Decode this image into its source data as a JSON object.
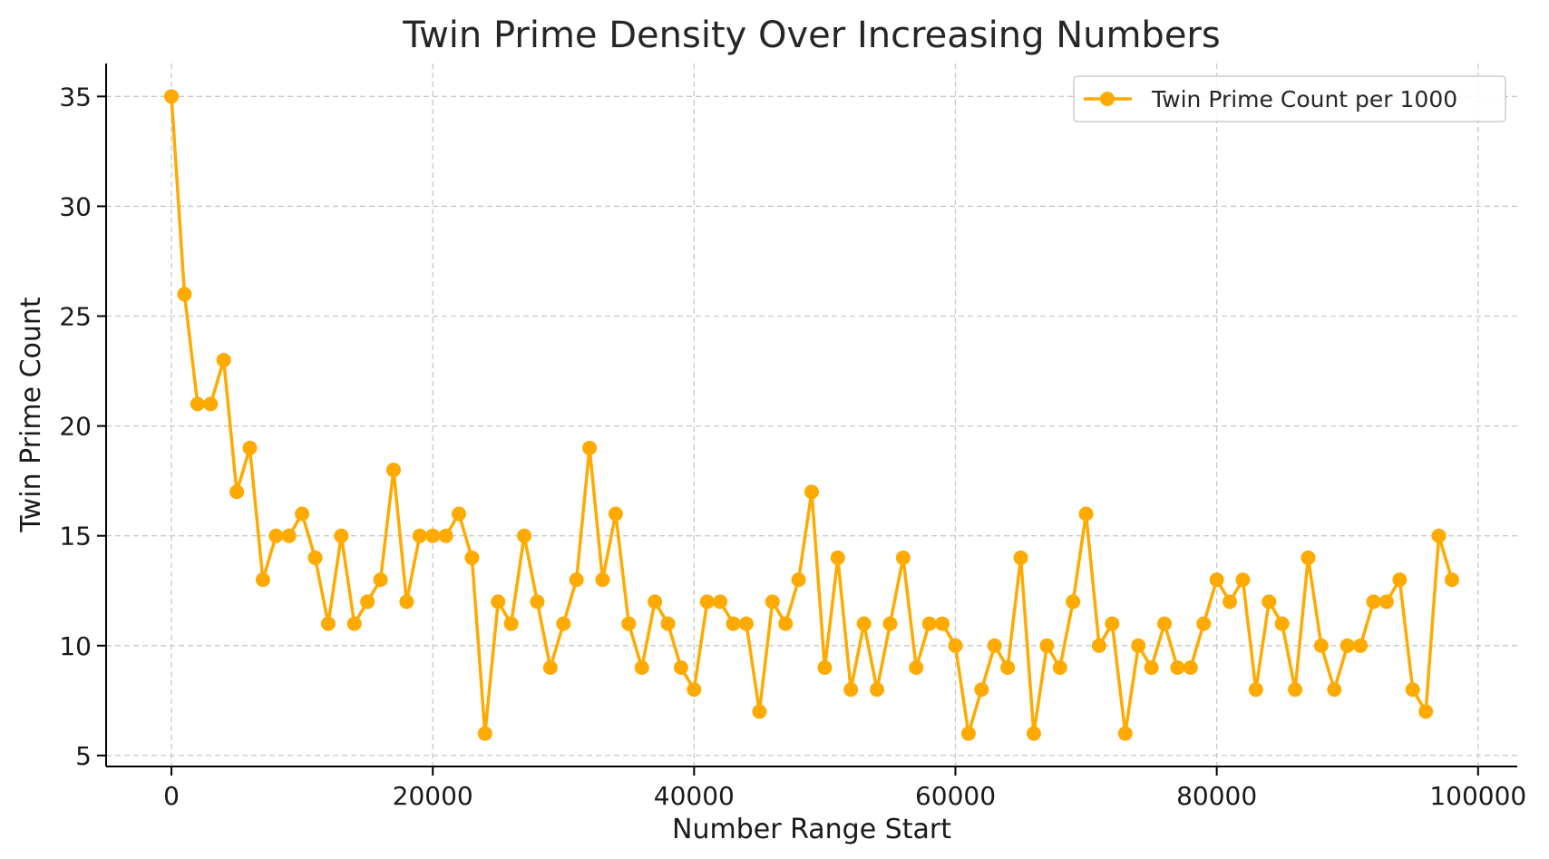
{
  "chart_data": {
    "type": "line",
    "title": "Twin Prime Density Over Increasing Numbers",
    "xlabel": "Number Range Start",
    "ylabel": "Twin Prime Count",
    "xlim": [
      -5000,
      103000
    ],
    "ylim": [
      4.5,
      36.5
    ],
    "xticks": [
      0,
      20000,
      40000,
      60000,
      80000,
      100000
    ],
    "yticks": [
      5,
      10,
      15,
      20,
      25,
      30,
      35
    ],
    "grid": true,
    "legend_position": "top-right",
    "color": "#FFAA00",
    "series": [
      {
        "name": "Twin Prime Count per 1000",
        "x": [
          0,
          1000,
          2000,
          3000,
          4000,
          5000,
          6000,
          7000,
          8000,
          9000,
          10000,
          11000,
          12000,
          13000,
          14000,
          15000,
          16000,
          17000,
          18000,
          19000,
          20000,
          21000,
          22000,
          23000,
          24000,
          25000,
          26000,
          27000,
          28000,
          29000,
          30000,
          31000,
          32000,
          33000,
          34000,
          35000,
          36000,
          37000,
          38000,
          39000,
          40000,
          41000,
          42000,
          43000,
          44000,
          45000,
          46000,
          47000,
          48000,
          49000,
          50000,
          51000,
          52000,
          53000,
          54000,
          55000,
          56000,
          57000,
          58000,
          59000,
          60000,
          61000,
          62000,
          63000,
          64000,
          65000,
          66000,
          67000,
          68000,
          69000,
          70000,
          71000,
          72000,
          73000,
          74000,
          75000,
          76000,
          77000,
          78000,
          79000,
          80000,
          81000,
          82000,
          83000,
          84000,
          85000,
          86000,
          87000,
          88000,
          89000,
          90000,
          91000,
          92000,
          93000,
          94000,
          95000,
          96000,
          97000,
          98000
        ],
        "values": [
          35,
          26,
          21,
          21,
          23,
          17,
          19,
          13,
          15,
          15,
          16,
          14,
          11,
          15,
          11,
          12,
          13,
          18,
          12,
          15,
          15,
          15,
          16,
          14,
          6,
          12,
          11,
          15,
          12,
          9,
          11,
          13,
          19,
          13,
          16,
          11,
          9,
          12,
          11,
          9,
          8,
          12,
          12,
          11,
          11,
          7,
          12,
          11,
          13,
          17,
          9,
          14,
          8,
          11,
          8,
          11,
          14,
          9,
          11,
          11,
          10,
          6,
          8,
          10,
          9,
          14,
          6,
          10,
          9,
          12,
          16,
          10,
          11,
          6,
          10,
          9,
          11,
          9,
          9,
          11,
          13,
          12,
          13,
          8,
          12,
          11,
          8,
          14,
          10,
          8,
          10,
          10,
          12,
          12,
          13,
          8,
          7,
          15,
          13
        ]
      }
    ]
  }
}
